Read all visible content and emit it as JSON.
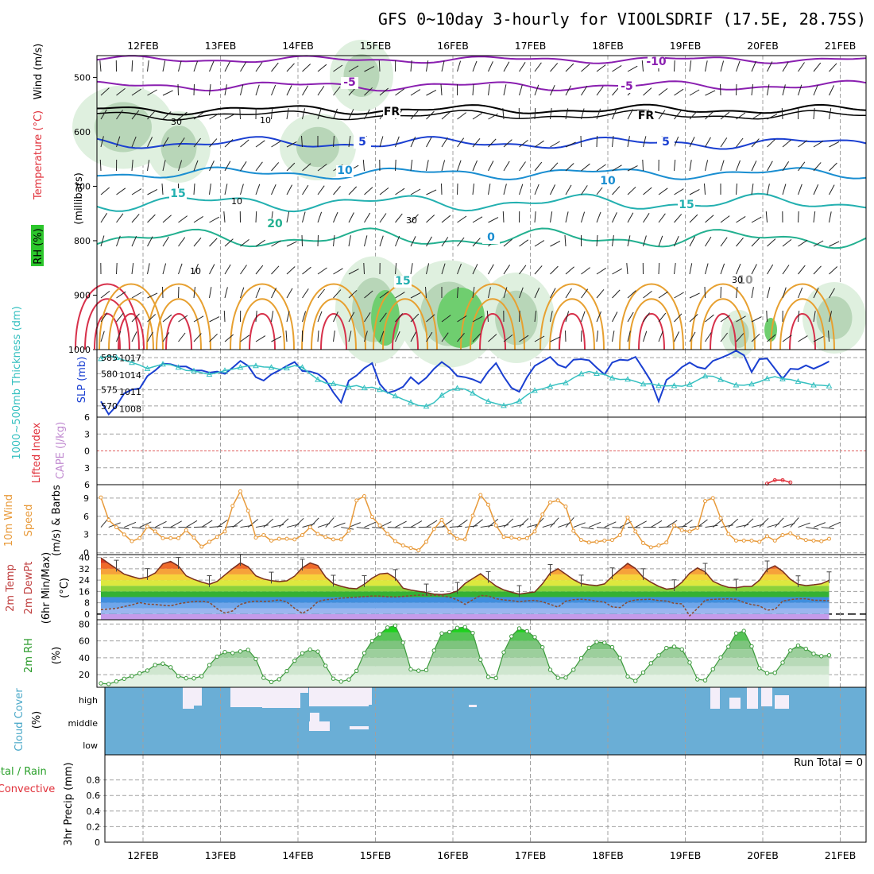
{
  "title": "GFS 0~10day 3-hourly for VIOOLSDRIF (17.5E, 28.75S)",
  "dates": [
    "12FEB",
    "13FEB",
    "14FEB",
    "15FEB",
    "16FEB",
    "17FEB",
    "18FEB",
    "19FEB",
    "20FEB",
    "21FEB"
  ],
  "run_total_label": "Run Total = 0",
  "colors": {
    "slp": "#1a3fd1",
    "thickness": "#35c0c0",
    "wind": "#e89a3a",
    "rh_line": "#3c9a3c",
    "cloud": "#6aaed6",
    "cape_zero": "#e06060",
    "li": "#e0303a"
  },
  "chart_data": [
    {
      "type": "contour",
      "panel": "upper-air",
      "ylabel": "(millibars)",
      "side_labels": [
        "Wind (m/s)",
        "Temperature (°C)",
        "RH (%)"
      ],
      "y_ticks": [
        500,
        600,
        700,
        800,
        900,
        1000
      ],
      "temperature_isotherm_labels": [
        "-10",
        "-5",
        "FR",
        "5",
        "10",
        "15",
        "20",
        "0",
        "15",
        "-5",
        "FR",
        "5",
        "10",
        "15",
        "10"
      ],
      "rh_contour_labels": [
        "30",
        "10",
        "10",
        "30",
        "30",
        "10"
      ]
    },
    {
      "type": "line",
      "panel": "slp-thickness",
      "ylabel_left": "1000~500mb Thickness (dm)",
      "ylabel_right": "SLP (mb)",
      "left_ticks": [
        585,
        580,
        575,
        570
      ],
      "right_ticks": [
        1017,
        1014,
        1011,
        1008
      ],
      "ylim_slp": [
        1006,
        1018
      ],
      "series": [
        {
          "name": "SLP (mb)",
          "values": [
            1009.3,
            1007.0,
            1008.5,
            1010.7,
            1011.4,
            1011.6,
            1013.8,
            1014.8,
            1016.0,
            1015.9,
            1015.5,
            1015.5,
            1014.8,
            1014.8,
            1014.4,
            1014.6,
            1014.2,
            1015.3,
            1016.5,
            1015.6,
            1013.6,
            1013.0,
            1014.1,
            1014.8,
            1015.6,
            1016.3,
            1014.7,
            1014.6,
            1014.2,
            1013.1,
            1010.9,
            1009.1,
            1013.0,
            1013.9,
            1015.2,
            1016.1,
            1012.4,
            1010.8,
            1011.2,
            1011.9,
            1013.6,
            1012.4,
            1013.5,
            1015.1,
            1016.3,
            1015.3,
            1013.8,
            1013.6,
            1013.2,
            1012.6,
            1014.6,
            1016.1,
            1013.7,
            1011.7,
            1011.0,
            1013.6,
            1015.6,
            1016.4,
            1017.2,
            1015.8,
            1015.3,
            1016.7,
            1016.8,
            1016.6,
            1015.3,
            1014.1,
            1016.2,
            1016.7,
            1016.6,
            1017.2,
            1015.1,
            1012.9,
            1009.3,
            1013.1,
            1014.1,
            1015.4,
            1016.2,
            1015.4,
            1015.1,
            1016.5,
            1017.0,
            1017.6,
            1018.3,
            1017.5,
            1014.5,
            1016.8,
            1016.9,
            1015.1,
            1013.3,
            1015.1,
            1015.0,
            1015.7,
            1015.1,
            1015.7,
            1016.4
          ]
        },
        {
          "name": "1000~500mb Thickness (dm)",
          "values": [
            584.7,
            585.6,
            585.0,
            584.2,
            583.5,
            582.7,
            581.6,
            582.3,
            583.0,
            582.8,
            582.0,
            581.0,
            580.9,
            580.3,
            579.8,
            580.3,
            581.0,
            581.4,
            582.0,
            582.4,
            582.5,
            582.1,
            582.0,
            581.4,
            581.8,
            582.5,
            582.0,
            580.0,
            578.2,
            577.1,
            576.9,
            576.3,
            575.9,
            576.3,
            575.6,
            575.8,
            575.1,
            574.1,
            573.1,
            572.0,
            571.1,
            570.1,
            569.9,
            571.0,
            573.3,
            574.8,
            575.5,
            575.2,
            574.0,
            572.5,
            571.4,
            570.7,
            570.1,
            570.6,
            571.5,
            573.4,
            574.8,
            575.3,
            576.1,
            576.8,
            577.2,
            578.7,
            580.0,
            580.7,
            580.1,
            579.8,
            578.7,
            578.2,
            578.3,
            577.6,
            576.8,
            576.9,
            576.3,
            576.2,
            576.3,
            576.1,
            576.7,
            578.0,
            579.3,
            579.2,
            578.2,
            577.3,
            576.5,
            576.4,
            576.8,
            577.5,
            578.5,
            579.1,
            578.4,
            578.2,
            577.6,
            577.1,
            576.5,
            576.4,
            576.2
          ]
        }
      ]
    },
    {
      "type": "line",
      "panel": "cape-li",
      "ylabel_left": "Lifted Index",
      "ylabel_right": "CAPE (J/kg)",
      "y_ticks": [
        "6",
        "3",
        "0",
        "3",
        "6"
      ],
      "ylim": [
        -6,
        6
      ],
      "series": [
        {
          "name": "Lifted Index",
          "points": [
            [
              86,
              5.8
            ],
            [
              87,
              5.2
            ],
            [
              88,
              5.2
            ],
            [
              89,
              5.6
            ]
          ]
        }
      ]
    },
    {
      "type": "line",
      "panel": "10m-wind",
      "ylabel": "10m Wind Speed (m/s) & Barbs",
      "y_ticks": [
        0,
        3,
        6,
        9
      ],
      "ylim": [
        -0.3,
        11.2
      ],
      "series": [
        {
          "name": "10m Wind Speed (m/s)",
          "values": [
            9.1,
            5.4,
            4.2,
            3.0,
            1.9,
            2.4,
            4.3,
            3.5,
            2.4,
            2.4,
            2.4,
            3.7,
            2.5,
            1.0,
            1.8,
            2.6,
            3.5,
            7.7,
            10.1,
            6.9,
            2.5,
            2.9,
            2.0,
            2.3,
            2.3,
            2.2,
            2.9,
            4.2,
            3.1,
            2.6,
            2.2,
            2.2,
            3.6,
            8.6,
            9.3,
            5.9,
            4.5,
            3.1,
            1.9,
            1.2,
            0.8,
            0.4,
            1.8,
            3.9,
            5.4,
            3.4,
            2.3,
            2.2,
            6.1,
            9.5,
            7.9,
            4.5,
            2.6,
            2.5,
            2.3,
            2.4,
            3.5,
            6.3,
            8.3,
            8.6,
            7.6,
            3.6,
            2.1,
            1.7,
            1.8,
            2.0,
            2.1,
            2.9,
            5.8,
            3.5,
            1.6,
            0.9,
            1.2,
            1.7,
            4.5,
            3.7,
            3.5,
            4.1,
            8.5,
            9.0,
            5.7,
            3.1,
            2.0,
            2.0,
            2.0,
            1.8,
            2.7,
            2.0,
            2.9,
            3.2,
            2.5,
            2.1,
            2.0,
            1.9,
            2.3
          ]
        }
      ]
    },
    {
      "type": "area",
      "panel": "2m-temp",
      "ylabel": "2m Temp 2m DewPt (6hr Min/Max) (°C)",
      "y_ticks": [
        0,
        8,
        16,
        24,
        32,
        40
      ],
      "ylim": [
        -4,
        42
      ],
      "series": [
        {
          "name": "2m Temp",
          "values": [
            39.7,
            35.8,
            32.0,
            28.2,
            26.5,
            25.0,
            26.1,
            29.0,
            35.5,
            37.2,
            34.0,
            27.0,
            24.5,
            22.6,
            21.1,
            23.1,
            27.6,
            32.1,
            36.1,
            33.4,
            27.0,
            24.8,
            23.6,
            22.9,
            23.5,
            26.8,
            32.7,
            36.1,
            34.3,
            26.2,
            21.4,
            19.6,
            18.3,
            17.9,
            21.1,
            25.4,
            28.3,
            28.9,
            25.4,
            18.3,
            17.0,
            16.1,
            15.2,
            14.1,
            13.8,
            14.5,
            16.3,
            21.6,
            25.1,
            28.5,
            24.0,
            19.8,
            17.1,
            15.4,
            14.1,
            14.9,
            15.6,
            21.4,
            29.0,
            32.0,
            28.2,
            24.3,
            21.5,
            20.6,
            20.1,
            21.3,
            26.6,
            31.3,
            35.8,
            32.2,
            26.0,
            22.5,
            19.6,
            17.6,
            18.2,
            22.5,
            28.9,
            32.6,
            29.8,
            23.2,
            20.6,
            18.9,
            18.6,
            19.5,
            19.5,
            23.9,
            31.5,
            34.1,
            30.2,
            24.6,
            21.0,
            20.1,
            20.7,
            21.4,
            23.8
          ]
        },
        {
          "name": "2m DewPt",
          "values": [
            3.2,
            3.6,
            4.0,
            5.3,
            6.5,
            8.1,
            7.0,
            6.8,
            6.2,
            5.8,
            7.3,
            8.2,
            8.8,
            9.0,
            8.3,
            3.8,
            0.7,
            2.2,
            6.8,
            8.4,
            9.1,
            8.9,
            9.2,
            10.1,
            8.5,
            4.1,
            0.5,
            3.6,
            8.8,
            10.2,
            10.5,
            11.3,
            11.6,
            12.0,
            12.3,
            12.8,
            12.7,
            12.2,
            12.1,
            12.5,
            13.0,
            13.4,
            13.4,
            13.2,
            13.0,
            12.0,
            10.1,
            6.9,
            10.1,
            13.2,
            12.8,
            10.8,
            10.0,
            9.5,
            8.6,
            9.4,
            9.7,
            8.6,
            6.9,
            4.9,
            9.1,
            10.2,
            10.5,
            10.0,
            9.1,
            8.4,
            5.1,
            4.6,
            8.6,
            10.0,
            10.3,
            10.4,
            9.6,
            9.2,
            7.6,
            7.2,
            -1.2,
            4.0,
            9.8,
            10.4,
            10.6,
            10.7,
            10.5,
            8.2,
            6.7,
            5.8,
            2.8,
            3.3,
            9.1,
            10.2,
            10.8,
            10.8,
            9.8,
            9.7,
            9.4
          ]
        }
      ]
    },
    {
      "type": "area",
      "panel": "2m-rh",
      "ylabel": "2m RH (%)",
      "y_ticks": [
        20,
        40,
        60,
        80
      ],
      "ylim": [
        5,
        85
      ],
      "series": [
        {
          "name": "2m RH (%)",
          "values": [
            9.7,
            8.9,
            12.0,
            15.1,
            18.3,
            21.5,
            24.8,
            31.4,
            33.0,
            28.7,
            18.3,
            15.7,
            15.6,
            18.1,
            31.3,
            41.3,
            46.7,
            45.6,
            47.5,
            49.3,
            38.5,
            16.2,
            11.3,
            14.5,
            24.2,
            36.5,
            45.3,
            49.6,
            47.3,
            30.5,
            15.2,
            11.7,
            14.2,
            24.5,
            45.5,
            59.9,
            67.8,
            75.8,
            78.1,
            57.8,
            26.2,
            24.7,
            25.4,
            48.5,
            68.8,
            70.5,
            75.4,
            76.3,
            69.3,
            37.6,
            17.3,
            16.0,
            46.4,
            65.3,
            74.7,
            71.4,
            64.5,
            52.4,
            25.7,
            16.2,
            16.5,
            25.8,
            39.4,
            51.7,
            58.6,
            57.8,
            52.5,
            39.7,
            17.8,
            12.6,
            22.5,
            33.4,
            42.8,
            51.5,
            53.1,
            49.9,
            34.3,
            14.4,
            13.3,
            26.4,
            40.2,
            53.1,
            68.9,
            71.7,
            53.5,
            27.6,
            21.7,
            22.1,
            34.2,
            48.6,
            54.4,
            50.6,
            44.7,
            41.9,
            42.9
          ]
        }
      ]
    },
    {
      "type": "heatmap",
      "panel": "cloud-cover",
      "ylabel": "Cloud Cover (%)",
      "levels": [
        "high",
        "middle",
        "low"
      ]
    },
    {
      "type": "bar",
      "panel": "3hr-precip",
      "ylabel": "3hr Precip (mm)",
      "side_labels": [
        "Total / Rain",
        "Convective"
      ],
      "y_ticks": [
        0,
        0.2,
        0.4,
        0.6,
        0.8
      ],
      "ylim": [
        0,
        1.0
      ],
      "values": []
    }
  ]
}
